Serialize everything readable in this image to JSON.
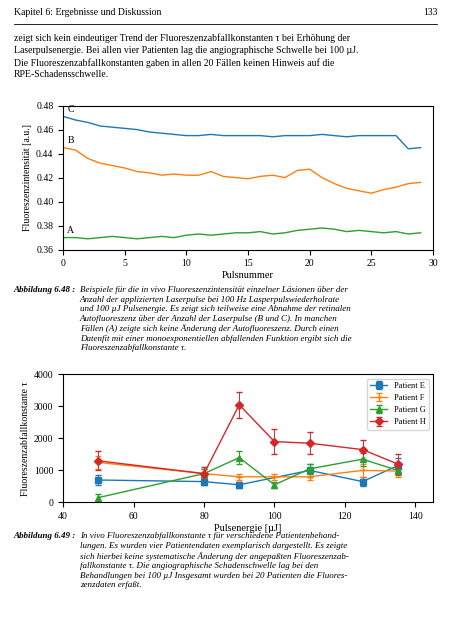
{
  "page": {
    "header": "Kapitel 6: Ergebnisse und Diskussion",
    "page_number": "133",
    "body": "zeigt sich kein eindeutiger Trend der Fluoreszenzabfallkonstanten τ bei Erhöhung der\nLaserpulsenergie. Bei allen vier Patienten lag die angiographische Schwelle bei 100 µJ.\nDie Fluoreszenzabfallkonstanten gaben in allen 20 Fällen keinen Hinweis auf die\nRPE-Schadensschwelle."
  },
  "chart_data": [
    {
      "type": "line",
      "x_label": "Pulsnummer",
      "y_label": "Fluoreszenzintensität [a.u.]",
      "xlim": [
        0,
        30
      ],
      "xticks": [
        0,
        5,
        10,
        15,
        20,
        25,
        30
      ],
      "ylim": [
        0.36,
        0.48
      ],
      "yticks": [
        0.36,
        0.38,
        {
          "value": 0.4,
          "label": "0.40"
        },
        0.42,
        0.44,
        0.46,
        0.48
      ],
      "x": [
        0,
        1,
        2,
        3,
        4,
        5,
        6,
        7,
        8,
        9,
        10,
        11,
        12,
        13,
        14,
        15,
        16,
        17,
        18,
        19,
        20,
        21,
        22,
        23,
        24,
        25,
        26,
        27,
        28,
        29
      ],
      "series": [
        {
          "name": "C",
          "values": [
            0.471,
            0.468,
            0.466,
            0.463,
            0.462,
            0.461,
            0.46,
            0.458,
            0.457,
            0.456,
            0.455,
            0.455,
            0.456,
            0.455,
            0.455,
            0.455,
            0.455,
            0.454,
            0.455,
            0.455,
            0.455,
            0.456,
            0.455,
            0.454,
            0.455,
            0.455,
            0.455,
            0.455,
            0.444,
            0.445
          ]
        },
        {
          "name": "B",
          "values": [
            0.445,
            0.443,
            0.436,
            0.432,
            0.43,
            0.428,
            0.425,
            0.424,
            0.422,
            0.423,
            0.422,
            0.422,
            0.425,
            0.421,
            0.42,
            0.419,
            0.421,
            0.422,
            0.42,
            0.426,
            0.427,
            0.42,
            0.415,
            0.411,
            0.409,
            0.407,
            0.41,
            0.412,
            0.415,
            0.416
          ]
        },
        {
          "name": "A",
          "values": [
            0.37,
            0.37,
            0.369,
            0.37,
            0.371,
            0.37,
            0.369,
            0.37,
            0.371,
            0.37,
            0.372,
            0.373,
            0.372,
            0.373,
            0.374,
            0.374,
            0.375,
            0.373,
            0.374,
            0.376,
            0.377,
            0.378,
            0.377,
            0.375,
            0.376,
            0.375,
            0.374,
            0.375,
            0.373,
            0.374
          ]
        }
      ],
      "caption_label": "Abbildung 6.48 :",
      "caption": "Beispiele für die in vivo Fluoreszenzintensität einzelner Läsionen über der\nAnzahl der applizierten Laserpulse bei 100 Hz Lasperpulswiederholrate\nund 100 µJ Pulsenergie. Es zeigt sich teilweise eine Abnahme der retinalen\nAutofluoreszenz über der Anzahl der Laserpulse (B und C). In manchen\nFällen (A) zeigte sich keine Änderung der Autofluoreszenz. Durch einen\nDatenfit mit einer monoexponentiellen abfallenden Funktion ergibt sich die\nFluoreszenzabfallkonstante τ."
    },
    {
      "type": "line",
      "x_label": "Pulsenergie [µJ]",
      "y_label": "Fluoreszenzabfallkonstante τ",
      "xlim": [
        40,
        145
      ],
      "xticks": [
        40,
        60,
        80,
        100,
        120,
        140
      ],
      "ylim": [
        0,
        4000
      ],
      "yticks": [
        0,
        1000,
        2000,
        3000,
        4000
      ],
      "legend": "upper right",
      "series": [
        {
          "name": "Patient E",
          "marker": "square",
          "x": [
            50,
            80,
            90,
            110,
            125,
            135
          ],
          "values": [
            700,
            650,
            550,
            1000,
            650,
            1150
          ],
          "errors": [
            150,
            100,
            100,
            200,
            150,
            250
          ]
        },
        {
          "name": "Patient F",
          "marker": "plus",
          "x": [
            50,
            80,
            90,
            100,
            110,
            125,
            135
          ],
          "values": [
            1250,
            900,
            800,
            800,
            800,
            1000,
            980
          ],
          "errors": [
            200,
            150,
            100,
            100,
            100,
            200,
            200
          ]
        },
        {
          "name": "Patient G",
          "marker": "triangle",
          "x": [
            50,
            80,
            90,
            100,
            110,
            125,
            135
          ],
          "values": [
            150,
            900,
            1400,
            550,
            1050,
            1350,
            1000
          ],
          "errors": [
            100,
            150,
            200,
            100,
            150,
            200,
            150
          ]
        },
        {
          "name": "Patient H",
          "marker": "diamond",
          "x": [
            50,
            80,
            90,
            100,
            110,
            125,
            135
          ],
          "values": [
            1300,
            900,
            3050,
            1900,
            1850,
            1650,
            1200
          ],
          "errors": [
            300,
            200,
            400,
            400,
            350,
            300,
            300
          ]
        }
      ],
      "caption_label": "Abbildung 6.49 :",
      "caption": "In vivo Fluoreszenzabfallkonstante τ für verschiedene Patientenbehand-\nlungen. Es wurden vier Patientendaten exemplarisch dargestellt. Es zeigte\nsich hierbei keine systematische Änderung der angepaßten Fluoreszenzab-\nfallkonstante τ. Die angiographische Schadenschwelle lag bei den\nBehandlungen bei 100 µJ Insgesamt wurden bei 20 Patienten die Fluores-\nzenzdaten erfаßt."
    }
  ]
}
